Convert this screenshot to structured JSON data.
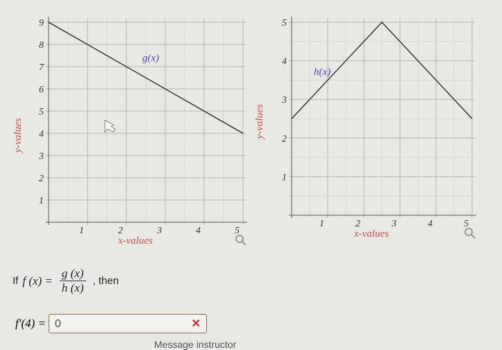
{
  "chart_data": [
    {
      "type": "line",
      "function_label": "g(x)",
      "xlabel": "x-values",
      "ylabel": "y-values",
      "xlim": [
        0,
        5
      ],
      "ylim": [
        0,
        9
      ],
      "x_ticks": [
        "1",
        "2",
        "3",
        "4",
        "5"
      ],
      "y_ticks": [
        "1",
        "2",
        "3",
        "4",
        "5",
        "6",
        "7",
        "8",
        "9"
      ],
      "grid": true,
      "points": [
        [
          0,
          9
        ],
        [
          5,
          4
        ]
      ],
      "line_color": "#222222"
    },
    {
      "type": "line",
      "function_label": "h(x)",
      "xlabel": "x-values",
      "ylabel": "y-values",
      "xlim": [
        0,
        5
      ],
      "ylim": [
        0,
        5
      ],
      "x_ticks": [
        "1",
        "2",
        "3",
        "4",
        "5"
      ],
      "y_ticks": [
        "1",
        "2",
        "3",
        "4",
        "5"
      ],
      "grid": true,
      "points": [
        [
          0,
          2.5
        ],
        [
          2.5,
          5
        ],
        [
          5,
          2.5
        ]
      ],
      "line_color": "#222222"
    }
  ],
  "question": {
    "prefix": "If",
    "f": "f (x) =",
    "num": "g (x)",
    "den": "h (x)",
    "suffix": ", then"
  },
  "answer": {
    "label": "f′(4) =",
    "value": "0",
    "status": "incorrect"
  },
  "footer": "Message instructor",
  "icons": [
    "zoom-magnifier-icon",
    "incorrect-x-icon",
    "cursor-icon"
  ]
}
